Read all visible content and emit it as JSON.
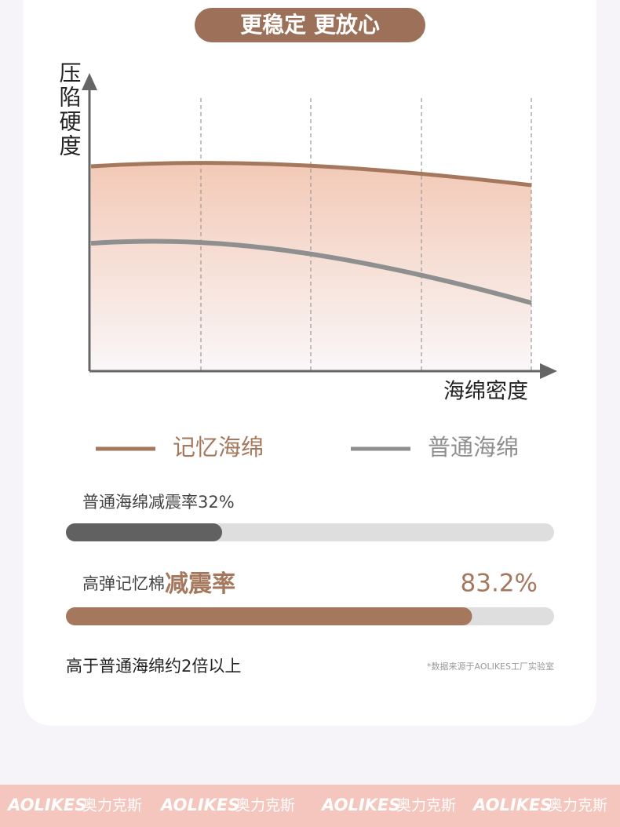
{
  "header": {
    "title": "更稳定 更放心"
  },
  "chart": {
    "y_label": "压陷硬度",
    "x_label": "海绵密度",
    "legend": [
      {
        "name": "记忆海绵",
        "color": "#a5785e"
      },
      {
        "name": "普通海绵",
        "color": "#8f8f8f"
      }
    ]
  },
  "bars": [
    {
      "label": "普通海绵减震率",
      "value": 32,
      "value_label": "32%",
      "color": "#616161"
    },
    {
      "label": "高弹记忆棉",
      "highlight": "减震率",
      "value": 83.2,
      "value_label": "83.2%",
      "color": "#a5785e"
    }
  ],
  "footer": {
    "note": "高于普通海绵约2倍以上",
    "source": "*数据来源于AOLIKES工厂实验室"
  },
  "brand": {
    "latin": "AOLIKES",
    "chinese": "奥力克斯"
  }
}
